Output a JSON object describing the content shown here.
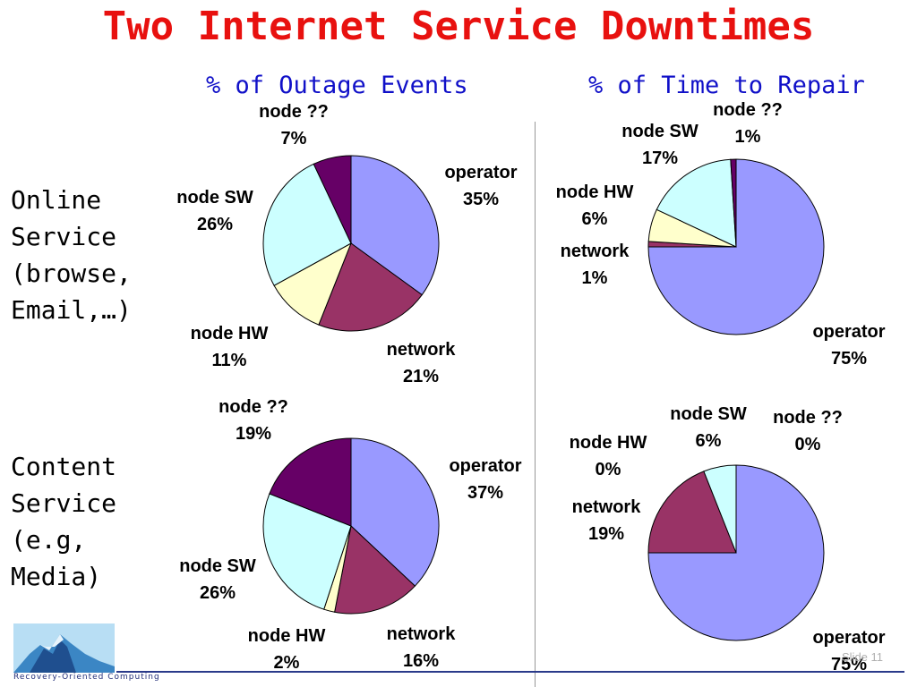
{
  "title": "Two Internet Service Downtimes",
  "columns": [
    "% of Outage Events",
    "% of Time to Repair"
  ],
  "rows": [
    [
      "Online",
      "Service",
      "(browse,",
      "Email,…)"
    ],
    [
      "Content",
      "Service",
      "(e.g,",
      "Media)"
    ]
  ],
  "colors": {
    "operator": "#9999ff",
    "network": "#993366",
    "node HW": "#ffffcc",
    "node SW": "#ccffff",
    "node ??": "#660066",
    "title": "#e8110f",
    "column_heading": "#1010c8"
  },
  "chart_data": [
    {
      "type": "pie",
      "title": "",
      "labels": [
        "operator",
        "network",
        "node HW",
        "node SW",
        "node ??"
      ],
      "values": [
        35,
        21,
        11,
        26,
        7
      ],
      "value_labels": [
        "35%",
        "21%",
        "11%",
        "26%",
        "7%"
      ]
    },
    {
      "type": "pie",
      "title": "",
      "labels": [
        "operator",
        "network",
        "node HW",
        "node SW",
        "node ??"
      ],
      "values": [
        75,
        1,
        6,
        17,
        1
      ],
      "value_labels": [
        "75%",
        "1%",
        "6%",
        "17%",
        "1%"
      ]
    },
    {
      "type": "pie",
      "title": "",
      "labels": [
        "operator",
        "network",
        "node HW",
        "node SW",
        "node ??"
      ],
      "values": [
        37,
        16,
        2,
        26,
        19
      ],
      "value_labels": [
        "37%",
        "16%",
        "2%",
        "26%",
        "19%"
      ]
    },
    {
      "type": "pie",
      "title": "",
      "labels": [
        "operator",
        "network",
        "node HW",
        "node SW",
        "node ??"
      ],
      "values": [
        75,
        19,
        0,
        6,
        0
      ],
      "value_labels": [
        "75%",
        "19%",
        "0%",
        "6%",
        "0%"
      ]
    }
  ],
  "logo": {
    "text": "Recovery-Oriented Computing"
  },
  "slide_label": "Slide 11"
}
